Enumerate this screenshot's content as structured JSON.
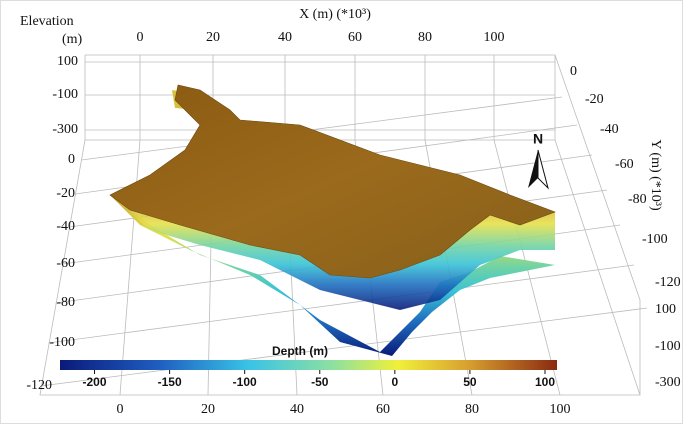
{
  "axes": {
    "elevation_label": "Elevation",
    "elevation_unit": "(m)",
    "x_title": "X (m) (*10³)",
    "y_title": "Y (m) (*10³)",
    "x_ticks_top": [
      0,
      20,
      40,
      60,
      80,
      100
    ],
    "elevation_ticks_back": [
      100,
      -100,
      -300
    ],
    "y_ticks_left": [
      0,
      -20,
      -40,
      -60,
      -80,
      -100,
      -120
    ],
    "y_ticks_right": [
      0,
      -20,
      -40,
      -60,
      -80,
      -100,
      -120
    ],
    "elevation_ticks_right": [
      100,
      -100,
      -300
    ],
    "x_ticks_bottom": [
      0,
      20,
      40,
      60,
      80,
      100
    ]
  },
  "north": "N",
  "colorbar": {
    "label": "Depth (m)",
    "range": [
      -223,
      108
    ],
    "ticks": [
      -200,
      -150,
      -100,
      -50,
      0,
      50,
      100
    ]
  }
}
